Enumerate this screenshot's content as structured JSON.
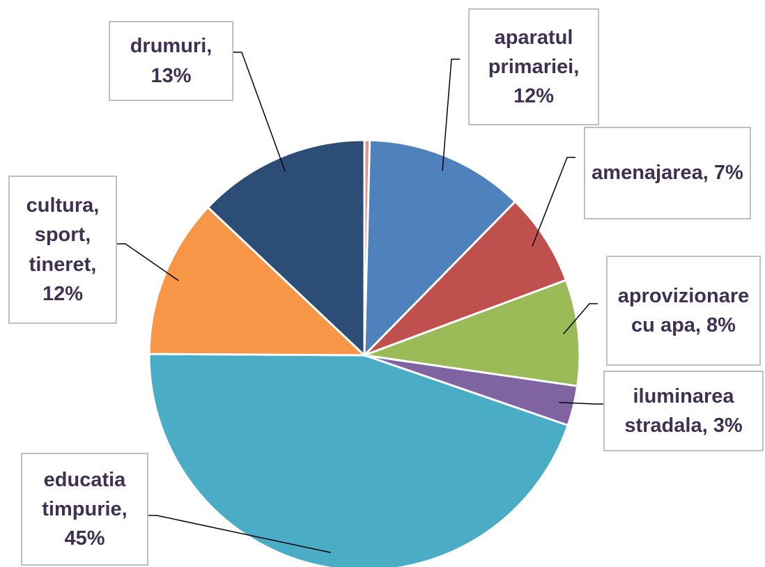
{
  "chart_data": {
    "type": "pie",
    "categories": [
      null,
      "aparatul primariei",
      "amenajarea",
      "aprovizionare cu apa",
      "iluminarea stradala",
      "educatia timpurie",
      "cultura, sport, tineret",
      "drumuri"
    ],
    "values": [
      0.4,
      12,
      7,
      8,
      3,
      45,
      12,
      13
    ],
    "value_labels": [
      null,
      "aparatul primariei, 12%",
      "amenajarea, 7%",
      "aprovizionare cu apa, 8%",
      "iluminarea stradala, 3%",
      "educatia timpurie, 45%",
      "cultura, sport, tineret, 12%",
      "drumuri, 13%"
    ],
    "colors": [
      "#d99694",
      "#4f81bd",
      "#c0504d",
      "#9bbb59",
      "#8064a2",
      "#4bacc6",
      "#f79646",
      "#2c4d75"
    ]
  }
}
